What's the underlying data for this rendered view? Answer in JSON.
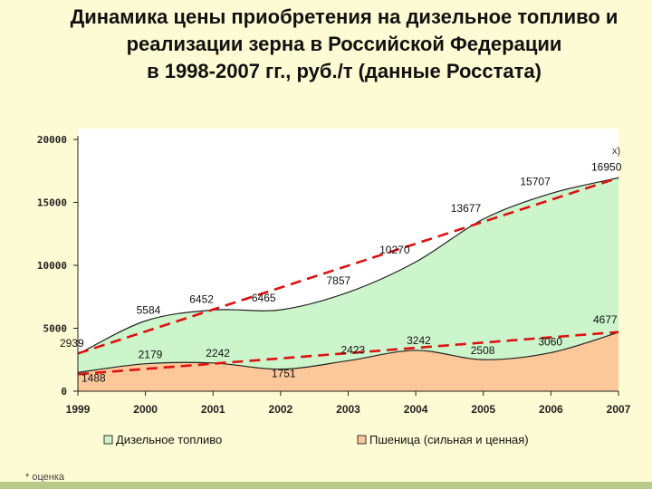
{
  "title_lines": [
    "Динамика цены приобретения на дизельное топливо и",
    "реализации зерна в Российской Федерации",
    "в 1998-2007 гг., руб./т (данные Росстата)"
  ],
  "footnote": "* оценка",
  "chart_data": {
    "type": "area",
    "x": [
      "1999",
      "2000",
      "2001",
      "2002",
      "2003",
      "2004",
      "2005",
      "2006",
      "2007"
    ],
    "ylim": [
      0,
      20000
    ],
    "yticks": [
      "0",
      "5000",
      "10000",
      "15000",
      "20000"
    ],
    "ytick_values": [
      0,
      5000,
      10000,
      15000,
      20000
    ],
    "series": [
      {
        "name": "Дизельное топливо",
        "values": [
          2939,
          5584,
          6452,
          6465,
          7857,
          10270,
          13677,
          15707,
          16950
        ],
        "labels": [
          "2939",
          "5584",
          "6452",
          "6465",
          "7857",
          "10270",
          "13677",
          "15707",
          "16950"
        ],
        "fill": "#ccf5cc",
        "trend": [
          3000,
          16950
        ]
      },
      {
        "name": "Пшеница (сильная и ценная)",
        "values": [
          1488,
          2179,
          2242,
          1751,
          2423,
          3242,
          2508,
          3060,
          4677
        ],
        "labels": [
          "1488",
          "2179",
          "2242",
          "1751",
          "2423",
          "3242",
          "2508",
          "3060",
          "4677"
        ],
        "fill": "#fcc899",
        "trend": [
          1350,
          4700
        ]
      }
    ],
    "annotation": "x)",
    "trend_color": "#dd1111",
    "grid": false,
    "legend": "bottom"
  }
}
